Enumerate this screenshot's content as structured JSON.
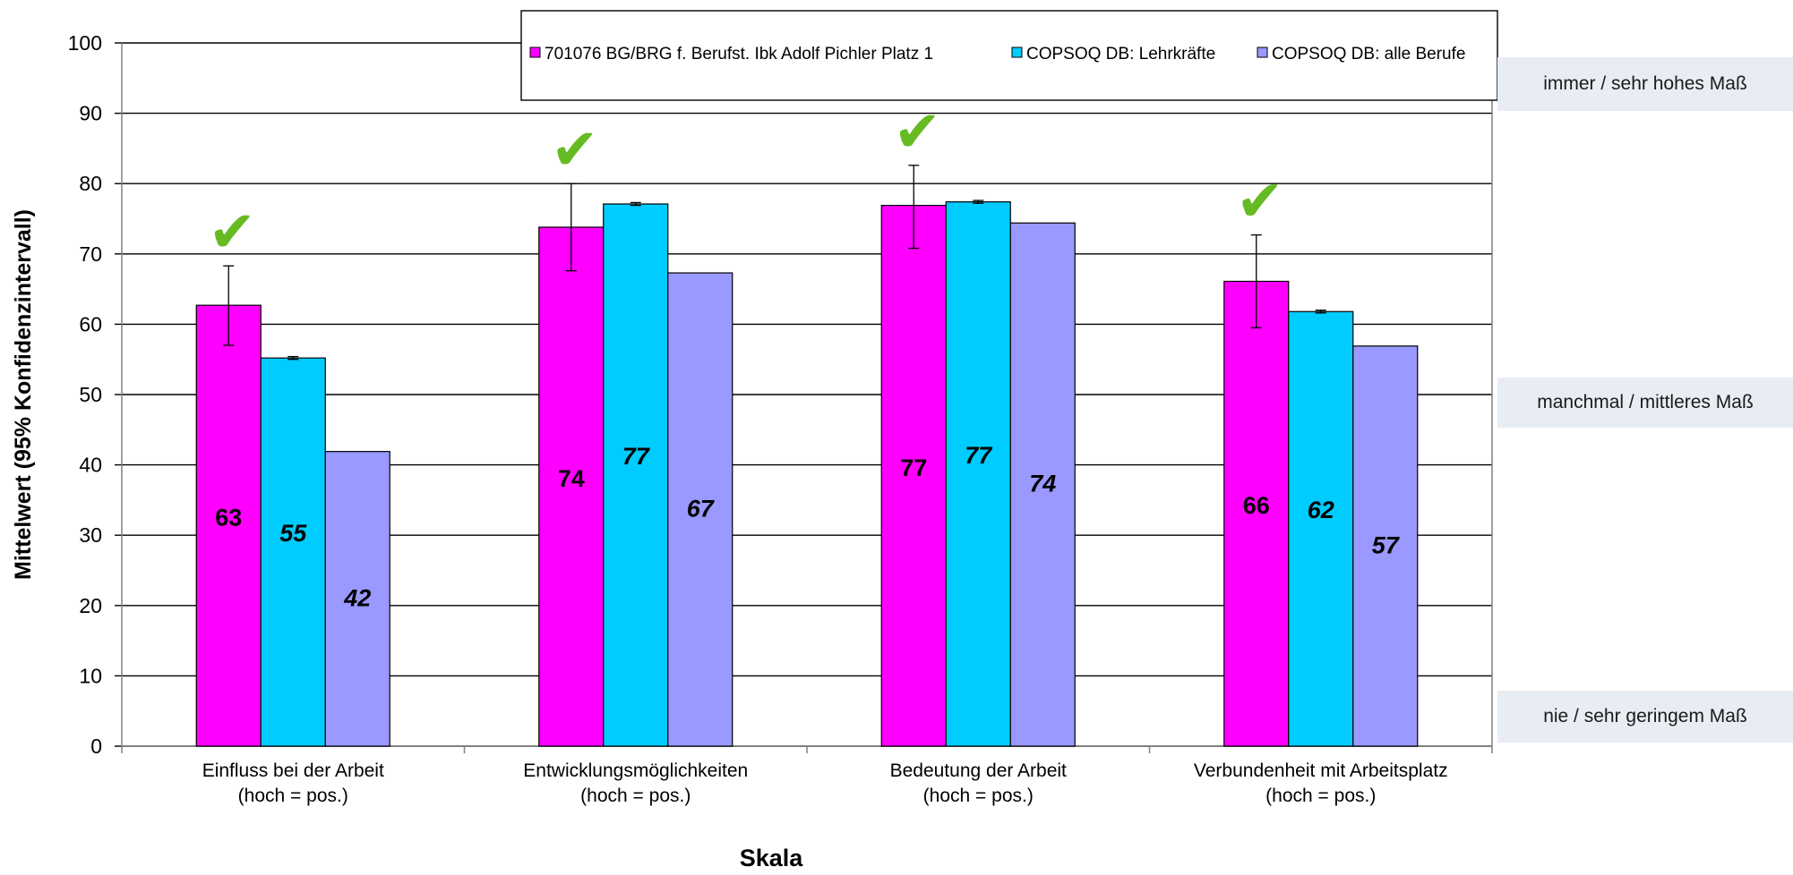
{
  "chart_data": {
    "type": "bar",
    "ylabel": "Mittelwert (95% Konfidenzintervall)",
    "xlabel": "Skala",
    "ylim": [
      0,
      100
    ],
    "yticks": [
      0,
      10,
      20,
      30,
      40,
      50,
      60,
      70,
      80,
      90,
      100
    ],
    "grid": true,
    "legend_position": "top",
    "categories": [
      [
        "Einfluss bei der Arbeit",
        "(hoch = pos.)"
      ],
      [
        "Entwicklungsmöglichkeiten",
        "(hoch = pos.)"
      ],
      [
        "Bedeutung der Arbeit",
        "(hoch = pos.)"
      ],
      [
        "Verbundenheit mit Arbeitsplatz",
        "(hoch = pos.)"
      ]
    ],
    "series": [
      {
        "name": "701076 BG/BRG f. Berufst. Ibk Adolf Pichler Platz 1",
        "color": "#ff00ff",
        "values": [
          62.7,
          73.8,
          76.9,
          66.1
        ],
        "labels": [
          "63",
          "74",
          "77",
          "66"
        ],
        "error_low": [
          57.0,
          67.6,
          70.8,
          59.5
        ],
        "error_high": [
          68.3,
          80.0,
          82.6,
          72.7
        ],
        "label_style": "normal"
      },
      {
        "name": "COPSOQ DB: Lehrkräfte",
        "color": "#00ccff",
        "values": [
          55.2,
          77.1,
          77.4,
          61.8
        ],
        "labels": [
          "55",
          "77",
          "77",
          "62"
        ],
        "error_low": [
          55.0,
          76.9,
          77.2,
          61.6
        ],
        "error_high": [
          55.4,
          77.3,
          77.6,
          62.0
        ],
        "label_style": "italic"
      },
      {
        "name": "COPSOQ DB: alle Berufe",
        "color": "#9999ff",
        "values": [
          41.9,
          67.3,
          74.4,
          56.9
        ],
        "labels": [
          "42",
          "67",
          "74",
          "57"
        ],
        "label_style": "italic"
      }
    ],
    "checkmarks": [
      true,
      true,
      true,
      true
    ],
    "checkmark_symbol": "✔",
    "checkmark_color": "#66bb22"
  },
  "side_labels": {
    "top": "immer / sehr hohes  Maß",
    "middle": "manchmal / mittleres Maß",
    "bottom": "nie / sehr geringem  Maß"
  }
}
